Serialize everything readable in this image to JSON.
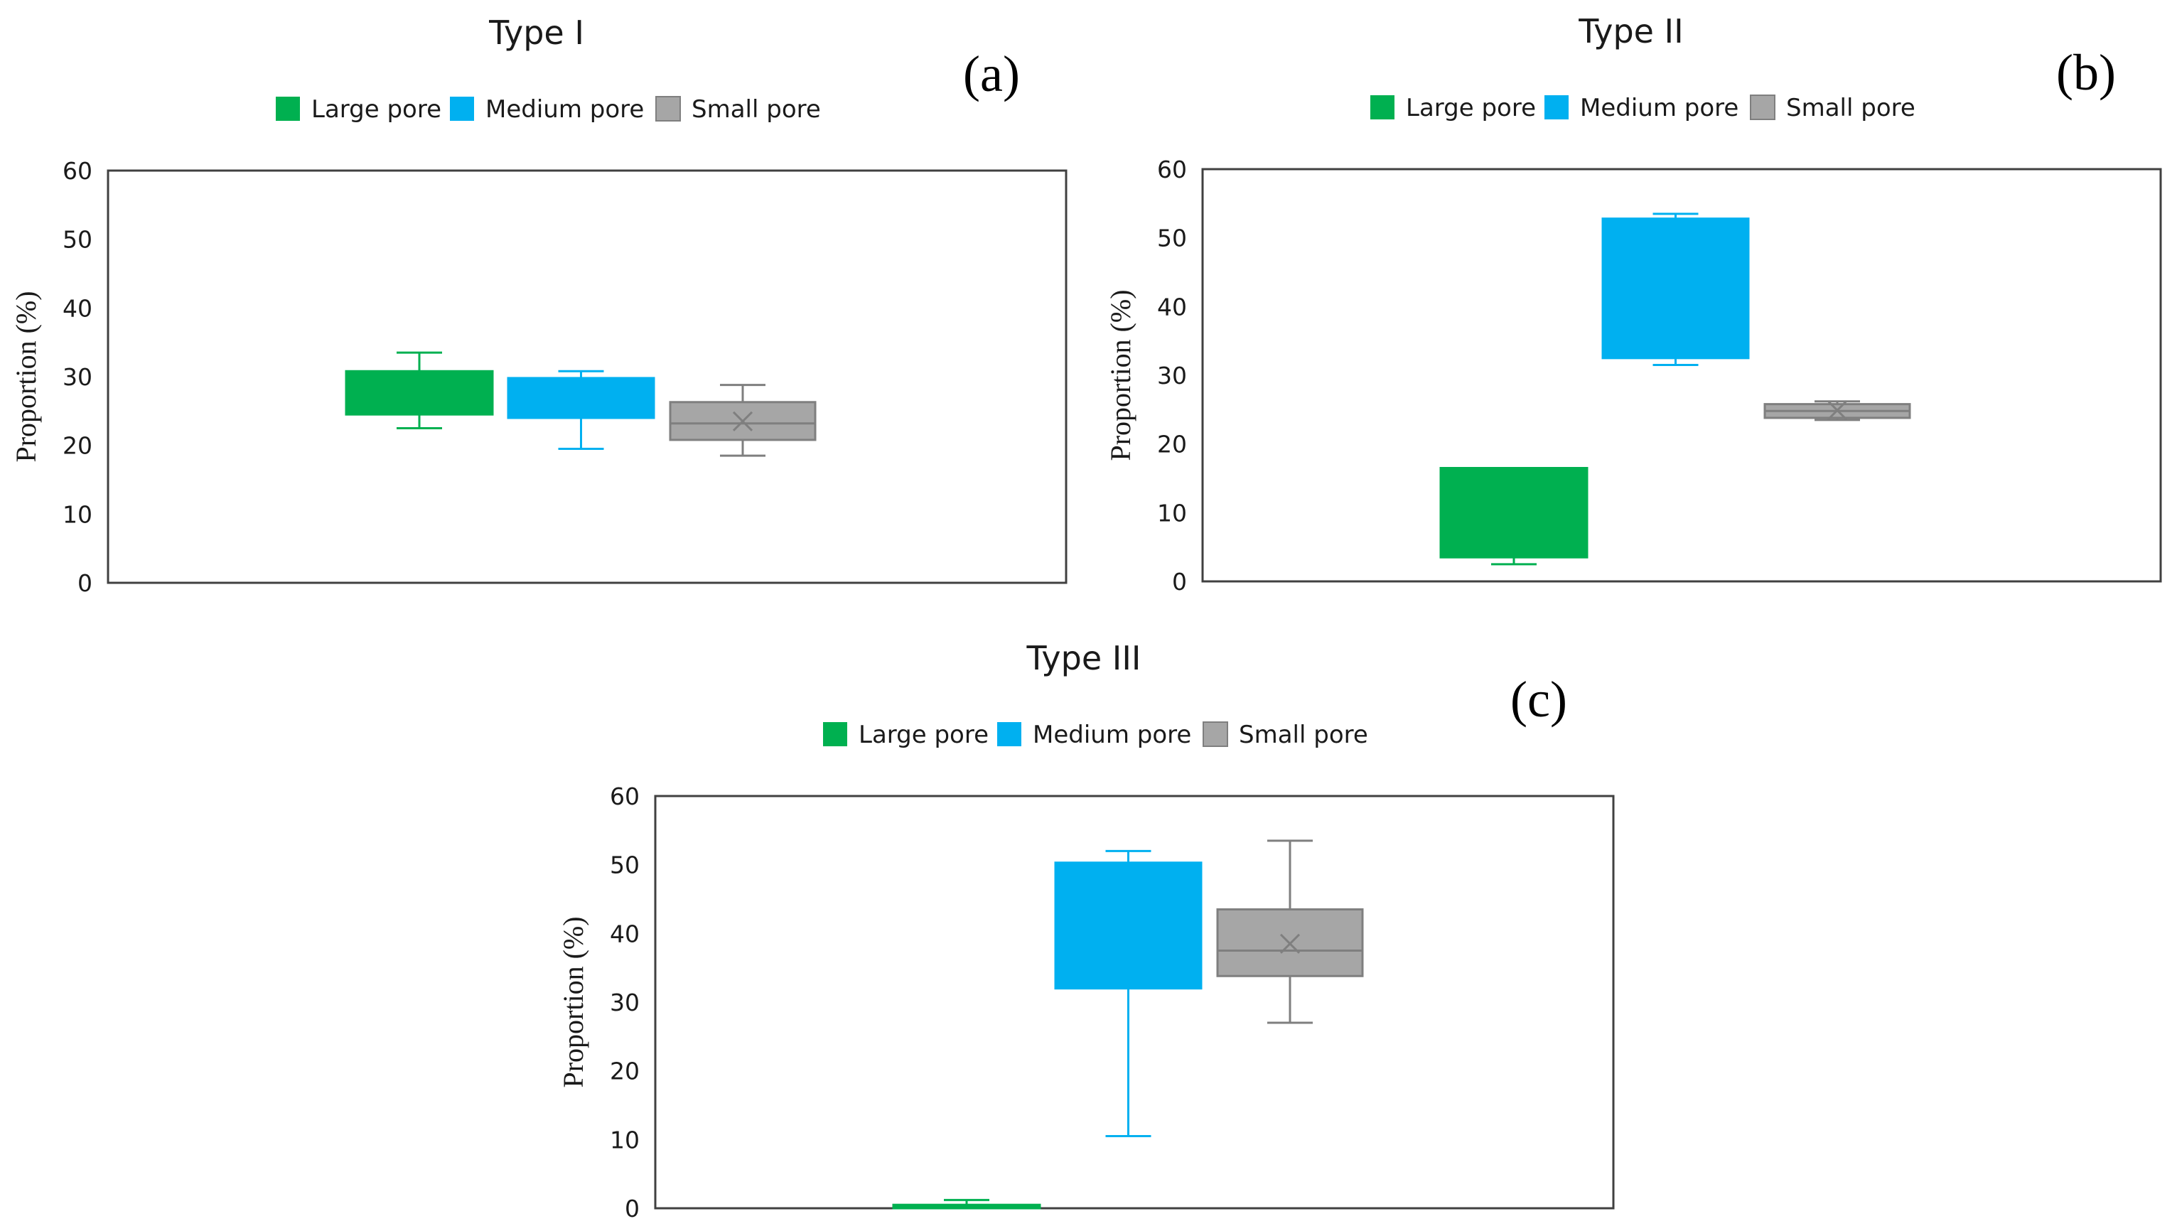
{
  "figure_tags": [
    "(a)",
    "(b)",
    "(c)"
  ],
  "colors": {
    "large": "#00b050",
    "medium": "#00b0f0",
    "small": "#a6a6a6",
    "small_edge": "#7f7f7f"
  },
  "chart_data": [
    {
      "type": "box",
      "title": "Type I",
      "tag": "(a)",
      "ylabel": "Proportion (%)",
      "xlabel": "",
      "ylim": [
        0,
        60
      ],
      "yticks": [
        "0",
        "10",
        "20",
        "30",
        "40",
        "50",
        "60"
      ],
      "legend": [
        "Large pore",
        "Medium pore",
        "Small pore"
      ],
      "legend_position": "top-center",
      "series": [
        {
          "name": "Large pore",
          "min": 22.5,
          "q1": 24.5,
          "median": 30.5,
          "q3": 30.8,
          "max": 33.5,
          "mean": null
        },
        {
          "name": "Medium pore",
          "min": 19.5,
          "q1": 24.0,
          "median": 29.5,
          "q3": 29.8,
          "max": 30.8,
          "mean": null
        },
        {
          "name": "Small pore",
          "min": 18.5,
          "q1": 20.8,
          "median": 23.2,
          "q3": 26.3,
          "max": 28.8,
          "mean": 23.5
        }
      ]
    },
    {
      "type": "box",
      "title": "Type II",
      "tag": "(b)",
      "ylabel": "Proportion (%)",
      "xlabel": "",
      "ylim": [
        0,
        60
      ],
      "yticks": [
        "0",
        "10",
        "20",
        "30",
        "40",
        "50",
        "60"
      ],
      "legend": [
        "Large pore",
        "Medium pore",
        "Small pore"
      ],
      "legend_position": "top-center",
      "series": [
        {
          "name": "Large pore",
          "min": 2.5,
          "q1": 3.5,
          "median": 16.2,
          "q3": 16.5,
          "max": 16.5,
          "mean": null
        },
        {
          "name": "Medium pore",
          "min": 31.5,
          "q1": 32.5,
          "median": 52.5,
          "q3": 52.8,
          "max": 53.5,
          "mean": null
        },
        {
          "name": "Small pore",
          "min": 23.5,
          "q1": 23.8,
          "median": 24.8,
          "q3": 25.8,
          "max": 26.2,
          "mean": 24.9
        }
      ]
    },
    {
      "type": "box",
      "title": "Type III",
      "tag": "(c)",
      "ylabel": "Proportion (%)",
      "xlabel": "",
      "ylim": [
        0,
        60
      ],
      "yticks": [
        "0",
        "10",
        "20",
        "30",
        "40",
        "50",
        "60"
      ],
      "legend": [
        "Large pore",
        "Medium pore",
        "Small pore"
      ],
      "legend_position": "top-center",
      "series": [
        {
          "name": "Large pore",
          "min": 0.0,
          "q1": 0.0,
          "median": 0.3,
          "q3": 0.5,
          "max": 1.2,
          "mean": null
        },
        {
          "name": "Medium pore",
          "min": 10.5,
          "q1": 32.0,
          "median": 50.0,
          "q3": 50.3,
          "max": 52.0,
          "mean": null
        },
        {
          "name": "Small pore",
          "min": 27.0,
          "q1": 33.8,
          "median": 37.5,
          "q3": 43.5,
          "max": 53.5,
          "mean": 38.5
        }
      ]
    }
  ]
}
